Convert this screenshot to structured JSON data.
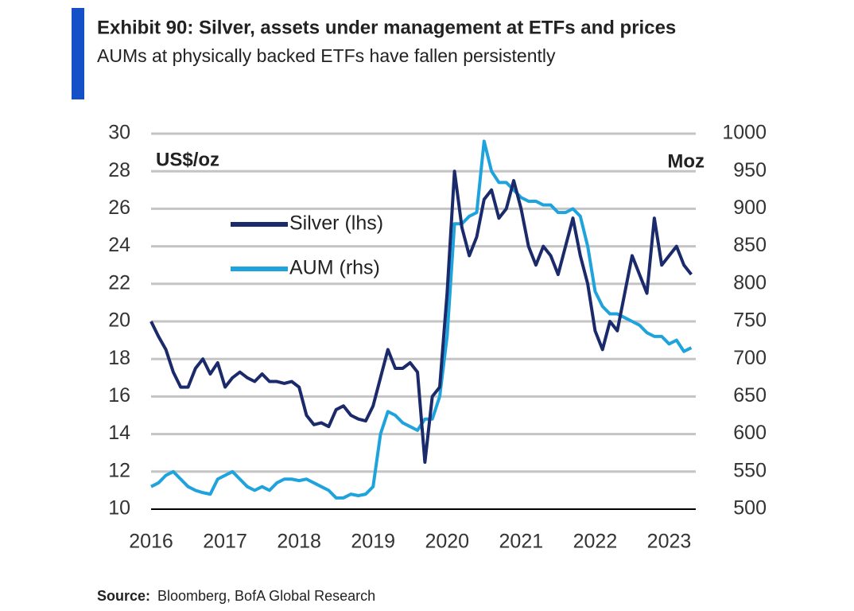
{
  "chart_data": {
    "type": "line",
    "title": "Exhibit 90: Silver, assets under management at ETFs and prices",
    "subtitle": "AUMs at physically backed ETFs have fallen persistently",
    "y_label": "US$/oz",
    "y2_label": "Moz",
    "source": {
      "label": "Source:",
      "text": "Bloomberg, BofA Global Research"
    },
    "x": [
      2016.0,
      2016.1,
      2016.2,
      2016.3,
      2016.4,
      2016.5,
      2016.6,
      2016.7,
      2016.8,
      2016.9,
      2017.0,
      2017.1,
      2017.2,
      2017.3,
      2017.4,
      2017.5,
      2017.6,
      2017.7,
      2017.8,
      2017.9,
      2018.0,
      2018.1,
      2018.2,
      2018.3,
      2018.4,
      2018.5,
      2018.6,
      2018.7,
      2018.8,
      2018.9,
      2019.0,
      2019.1,
      2019.2,
      2019.3,
      2019.4,
      2019.5,
      2019.6,
      2019.7,
      2019.8,
      2019.9,
      2020.0,
      2020.1,
      2020.2,
      2020.3,
      2020.4,
      2020.5,
      2020.6,
      2020.7,
      2020.8,
      2020.9,
      2021.0,
      2021.1,
      2021.2,
      2021.3,
      2021.4,
      2021.5,
      2021.6,
      2021.7,
      2021.8,
      2021.9,
      2022.0,
      2022.1,
      2022.2,
      2022.3,
      2022.4,
      2022.5,
      2022.6,
      2022.7,
      2022.8,
      2022.9,
      2023.0,
      2023.1,
      2023.2,
      2023.3
    ],
    "series": [
      {
        "name": "Silver (lhs)",
        "color": "#1b2a6b",
        "axis": "y",
        "values": [
          20.0,
          19.2,
          18.5,
          17.3,
          16.5,
          16.5,
          17.5,
          18.0,
          17.2,
          17.8,
          16.5,
          17.0,
          17.3,
          17.0,
          16.8,
          17.2,
          16.8,
          16.8,
          16.7,
          16.8,
          16.5,
          15.0,
          14.5,
          14.6,
          14.4,
          15.3,
          15.5,
          15.0,
          14.8,
          14.7,
          15.5,
          17.0,
          18.5,
          17.5,
          17.5,
          17.8,
          17.3,
          12.5,
          16.0,
          16.5,
          21.5,
          28.0,
          25.0,
          23.5,
          24.5,
          26.5,
          27.0,
          25.5,
          26.0,
          27.5,
          26.0,
          24.0,
          23.0,
          24.0,
          23.5,
          22.5,
          24.0,
          25.5,
          23.5,
          22.0,
          19.5,
          18.5,
          20.0,
          19.5,
          21.5,
          23.5,
          22.5,
          21.5,
          25.5,
          23.0,
          23.5,
          24.0,
          23.0,
          22.5
        ]
      },
      {
        "name": "AUM (rhs)",
        "color": "#1fa3dc",
        "axis": "y2",
        "values": [
          530,
          535,
          545,
          550,
          540,
          530,
          525,
          522,
          520,
          540,
          545,
          550,
          540,
          530,
          525,
          530,
          525,
          535,
          540,
          540,
          538,
          540,
          535,
          530,
          525,
          515,
          515,
          520,
          518,
          520,
          530,
          600,
          630,
          625,
          615,
          610,
          605,
          620,
          620,
          650,
          730,
          880,
          880,
          890,
          895,
          990,
          950,
          935,
          935,
          925,
          915,
          910,
          910,
          905,
          905,
          895,
          895,
          900,
          890,
          850,
          790,
          770,
          760,
          760,
          755,
          750,
          745,
          735,
          730,
          730,
          720,
          725,
          710,
          715
        ]
      }
    ],
    "xlim": [
      2016.0,
      2023.36
    ],
    "xticks": [
      2016,
      2017,
      2018,
      2019,
      2020,
      2021,
      2022,
      2023
    ],
    "ylim": [
      10,
      30
    ],
    "yticks": [
      10,
      12,
      14,
      16,
      18,
      20,
      22,
      24,
      26,
      28,
      30
    ],
    "y2lim": [
      500,
      1000
    ],
    "y2ticks": [
      500,
      550,
      600,
      650,
      700,
      750,
      800,
      850,
      900,
      950,
      1000
    ],
    "grid": true
  }
}
